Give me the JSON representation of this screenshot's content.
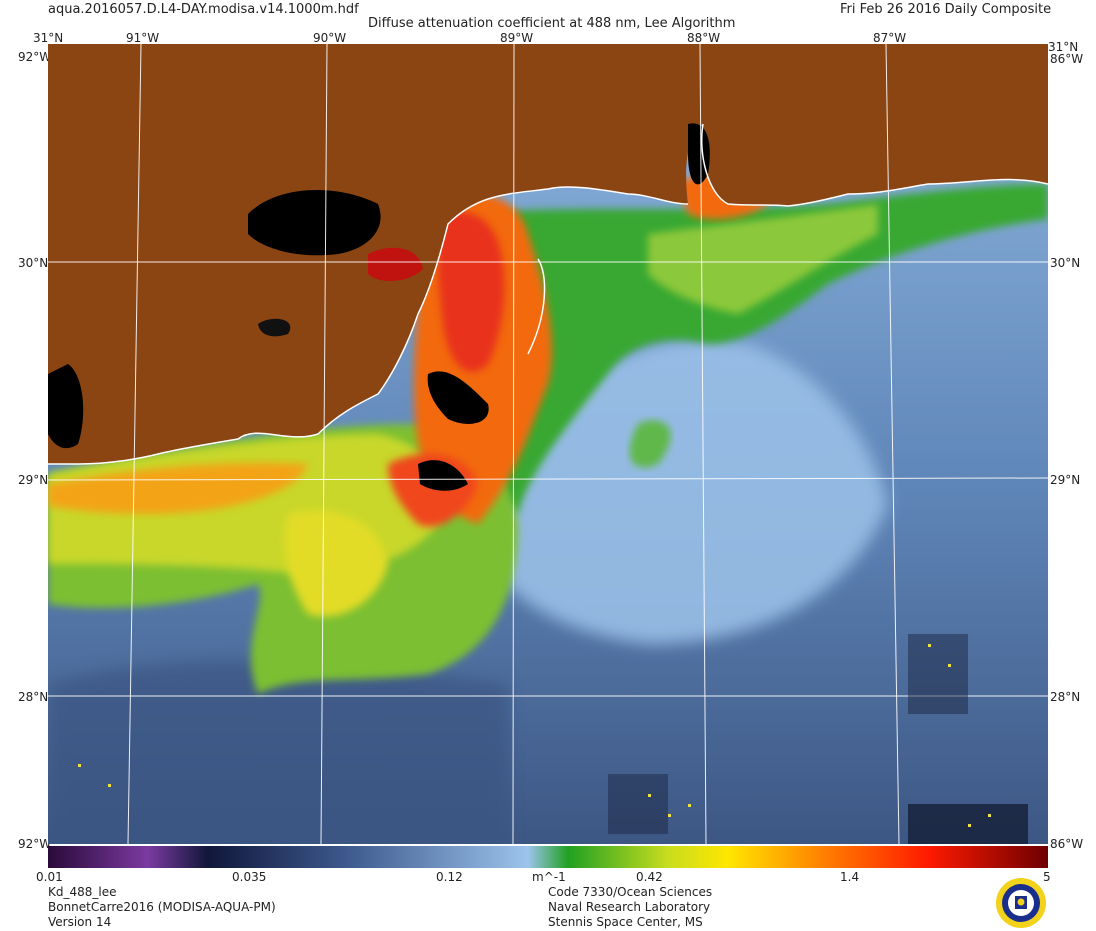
{
  "header": {
    "filename": "aqua.2016057.D.L4-DAY.modisa.v14.1000m.hdf",
    "title": "Diffuse attenuation coefficient at 488 nm, Lee Algorithm",
    "date": "Fri Feb 26 2016 Daily Composite"
  },
  "map": {
    "lon_labels": [
      "91°W",
      "90°W",
      "89°W",
      "88°W",
      "87°W"
    ],
    "lat_labels_left": [
      "31°N",
      "30°N",
      "29°N",
      "28°N"
    ],
    "lat_labels_right": [
      "31°N",
      "30°N",
      "29°N",
      "28°N"
    ],
    "corner_labels": {
      "top_left": "31°N",
      "top_right": "31°N",
      "side_top_left": "92°W",
      "side_top_right": "86°W",
      "side_bottom_left": "92°W",
      "side_bottom_right": "86°W"
    },
    "colors": {
      "land": "#8B4513",
      "coastline": "#ffffff",
      "graticule": "#ffffff",
      "deep_water": "#3f5a86",
      "mid_water": "#6f97c6",
      "light_water": "#9cc4ec"
    }
  },
  "colorbar": {
    "ticks": [
      "0.01",
      "0.035",
      "0.12",
      "m^-1",
      "0.42",
      "1.4",
      "5"
    ],
    "scale": "log",
    "range": [
      0.01,
      5
    ]
  },
  "footer": {
    "product_lines": [
      "Kd_488_lee",
      "BonnetCarre2016 (MODISA-AQUA-PM)",
      "Version 14"
    ],
    "org_lines": [
      "Code 7330/Ocean Sciences",
      "Naval Research Laboratory",
      "Stennis Space Center, MS"
    ]
  }
}
